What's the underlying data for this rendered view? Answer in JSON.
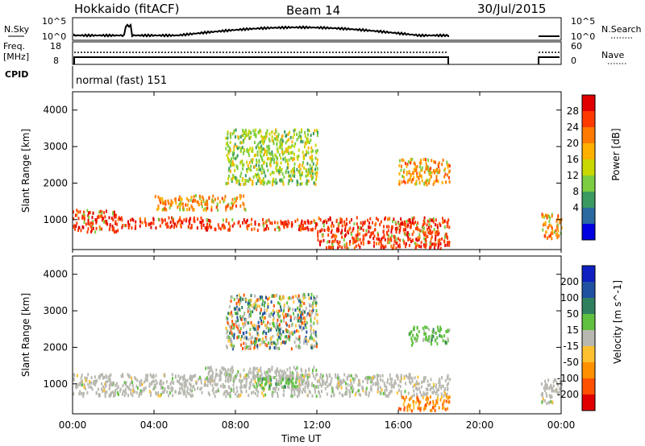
{
  "header": {
    "station": "Hokkaido (fitACF)",
    "beam": "Beam 14",
    "date": "30/Jul/2015"
  },
  "status_panels": {
    "nsky_label": "N.Sky",
    "nsearch_label": "N.Search",
    "nsky_ticks": [
      "10^5",
      "10^0"
    ],
    "freq_label_1": "Freq.",
    "freq_label_2": "[MHz]",
    "freq_ticks": [
      "18",
      "8"
    ],
    "nave_label": "Nave",
    "nave_ticks": [
      "60",
      "0"
    ],
    "cpid_label": "CPID",
    "cpid_value": "normal (fast) 151"
  },
  "chart_data": [
    {
      "type": "heatmap",
      "name": "power",
      "ylabel": "Slant Range [km]",
      "yticks": [
        1000,
        2000,
        3000,
        4000
      ],
      "ylim": [
        180,
        4500
      ],
      "xlim": [
        0,
        24
      ],
      "colorbar_label": "Power [dB]",
      "colorbar_ticks": [
        "28",
        "24",
        "20",
        "16",
        "12",
        "8",
        "4"
      ],
      "colorbar_colors": [
        "#e00000",
        "#ff3a00",
        "#ff7a00",
        "#ffb000",
        "#c8d800",
        "#7ccd40",
        "#3a9a60",
        "#2a6aa0",
        "#0000e0"
      ],
      "data_gaps_ut": [
        [
          18.5,
          23.0
        ]
      ],
      "regions": [
        {
          "t0": 0.0,
          "t1": 2.2,
          "r0": 700,
          "r1": 1300,
          "level": "high"
        },
        {
          "t0": 2.2,
          "t1": 6.5,
          "r0": 800,
          "r1": 1100,
          "level": "high"
        },
        {
          "t0": 6.5,
          "t1": 12.0,
          "r0": 750,
          "r1": 1050,
          "level": "high"
        },
        {
          "t0": 12.0,
          "t1": 18.5,
          "r0": 250,
          "r1": 1100,
          "level": "high"
        },
        {
          "t0": 4.0,
          "t1": 8.5,
          "r0": 1300,
          "r1": 1700,
          "level": "mid"
        },
        {
          "t0": 7.5,
          "t1": 12.0,
          "r0": 2000,
          "r1": 3500,
          "level": "low"
        },
        {
          "t0": 16.0,
          "t1": 18.5,
          "r0": 2000,
          "r1": 2700,
          "level": "mid"
        },
        {
          "t0": 23.0,
          "t1": 24.0,
          "r0": 500,
          "r1": 1200,
          "level": "mid"
        }
      ]
    },
    {
      "type": "heatmap",
      "name": "velocity",
      "ylabel": "Slant Range [km]",
      "yticks": [
        1000,
        2000,
        3000,
        4000
      ],
      "ylim": [
        180,
        4500
      ],
      "xlim": [
        0,
        24
      ],
      "colorbar_label": "Velocity [m s^-1]",
      "colorbar_ticks": [
        "200",
        "100",
        "50",
        "15",
        "-15",
        "-50",
        "-100",
        "-200"
      ],
      "colorbar_colors": [
        "#1020c0",
        "#2050a0",
        "#308060",
        "#60c040",
        "#b8b8b0",
        "#ffc030",
        "#ff9000",
        "#ff5000",
        "#e00000"
      ],
      "data_gaps_ut": [
        [
          18.5,
          23.0
        ]
      ],
      "regions": [
        {
          "t0": 0.0,
          "t1": 18.5,
          "r0": 700,
          "r1": 1300,
          "level": "ground"
        },
        {
          "t0": 6.5,
          "t1": 12.0,
          "r0": 1100,
          "r1": 1500,
          "level": "ground"
        },
        {
          "t0": 9.0,
          "t1": 11.0,
          "r0": 900,
          "r1": 1200,
          "level": "pos"
        },
        {
          "t0": 16.0,
          "t1": 18.5,
          "r0": 300,
          "r1": 700,
          "level": "neg"
        },
        {
          "t0": 7.5,
          "t1": 12.0,
          "r0": 2000,
          "r1": 3500,
          "level": "mixed"
        },
        {
          "t0": 16.5,
          "t1": 18.5,
          "r0": 2100,
          "r1": 2600,
          "level": "pos"
        },
        {
          "t0": 23.0,
          "t1": 24.0,
          "r0": 500,
          "r1": 1200,
          "level": "ground"
        }
      ]
    }
  ],
  "xaxis": {
    "ticks": [
      "00:00",
      "04:00",
      "08:00",
      "12:00",
      "16:00",
      "20:00",
      "00:00"
    ],
    "label": "Time UT"
  }
}
